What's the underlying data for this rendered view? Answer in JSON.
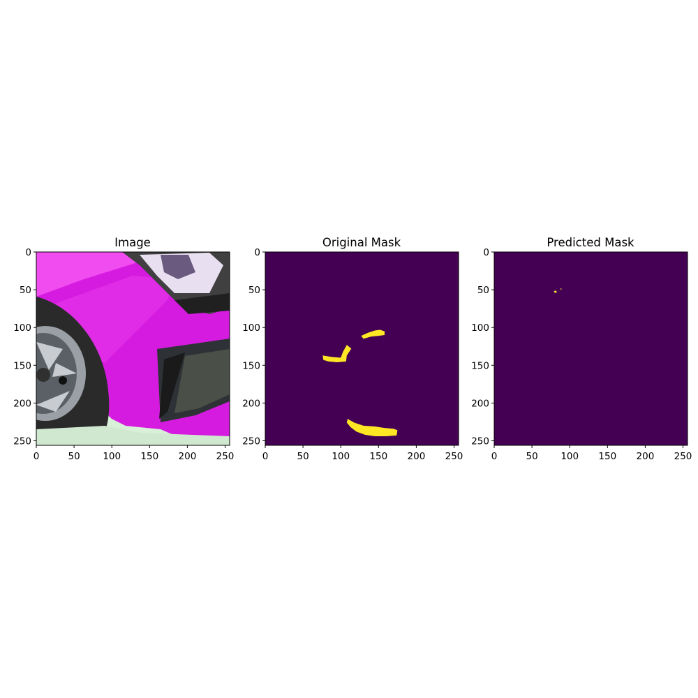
{
  "chart_data": [
    {
      "type": "image",
      "title": "Image",
      "content": "photo of a car front bumper and wheel (color-inverted magenta/green)",
      "xlim": [
        0,
        256
      ],
      "ylim": [
        256,
        0
      ],
      "xticks": [
        0,
        50,
        100,
        150,
        200,
        250
      ],
      "yticks": [
        0,
        50,
        100,
        150,
        200,
        250
      ]
    },
    {
      "type": "heatmap",
      "title": "Original Mask",
      "xlim": [
        0,
        256
      ],
      "ylim": [
        256,
        0
      ],
      "xticks": [
        0,
        50,
        100,
        150,
        200,
        250
      ],
      "yticks": [
        0,
        50,
        100,
        150,
        200,
        250
      ],
      "background_color": "#440154",
      "foreground_color": "#fde725",
      "regions": [
        {
          "name": "region-top-right",
          "points": [
            [
              127,
              111
            ],
            [
              136,
              107
            ],
            [
              145,
              104
            ],
            [
              152,
              103
            ],
            [
              158,
              105
            ],
            [
              158,
              110
            ],
            [
              150,
              111
            ],
            [
              140,
              112
            ],
            [
              130,
              115
            ]
          ]
        },
        {
          "name": "region-left-hook",
          "points": [
            [
              76,
              137
            ],
            [
              88,
              139
            ],
            [
              100,
              140
            ],
            [
              103,
              132
            ],
            [
              108,
              123
            ],
            [
              114,
              128
            ],
            [
              108,
              137
            ],
            [
              107,
              145
            ],
            [
              95,
              146
            ],
            [
              84,
              145
            ],
            [
              77,
              143
            ]
          ]
        },
        {
          "name": "region-bottom",
          "points": [
            [
              109,
              221
            ],
            [
              118,
              226
            ],
            [
              130,
              230
            ],
            [
              145,
              231
            ],
            [
              158,
              233
            ],
            [
              170,
              234
            ],
            [
              175,
              236
            ],
            [
              174,
              243
            ],
            [
              160,
              244
            ],
            [
              145,
              244
            ],
            [
              132,
              242
            ],
            [
              121,
              238
            ],
            [
              113,
              232
            ],
            [
              108,
              226
            ]
          ]
        }
      ]
    },
    {
      "type": "heatmap",
      "title": "Predicted Mask",
      "xlim": [
        0,
        256
      ],
      "ylim": [
        256,
        0
      ],
      "xticks": [
        0,
        50,
        100,
        150,
        200,
        250
      ],
      "yticks": [
        0,
        50,
        100,
        150,
        200,
        250
      ],
      "background_color": "#440154",
      "foreground_color": "#fde725",
      "regions": [
        {
          "name": "speck-1",
          "points": [
            [
              79,
              52
            ],
            [
              82,
              51
            ],
            [
              83,
              54
            ],
            [
              80,
              54
            ]
          ]
        },
        {
          "name": "speck-2",
          "points": [
            [
              88,
              48
            ],
            [
              89,
              48
            ],
            [
              89,
              50
            ],
            [
              88,
              50
            ]
          ]
        }
      ]
    }
  ]
}
